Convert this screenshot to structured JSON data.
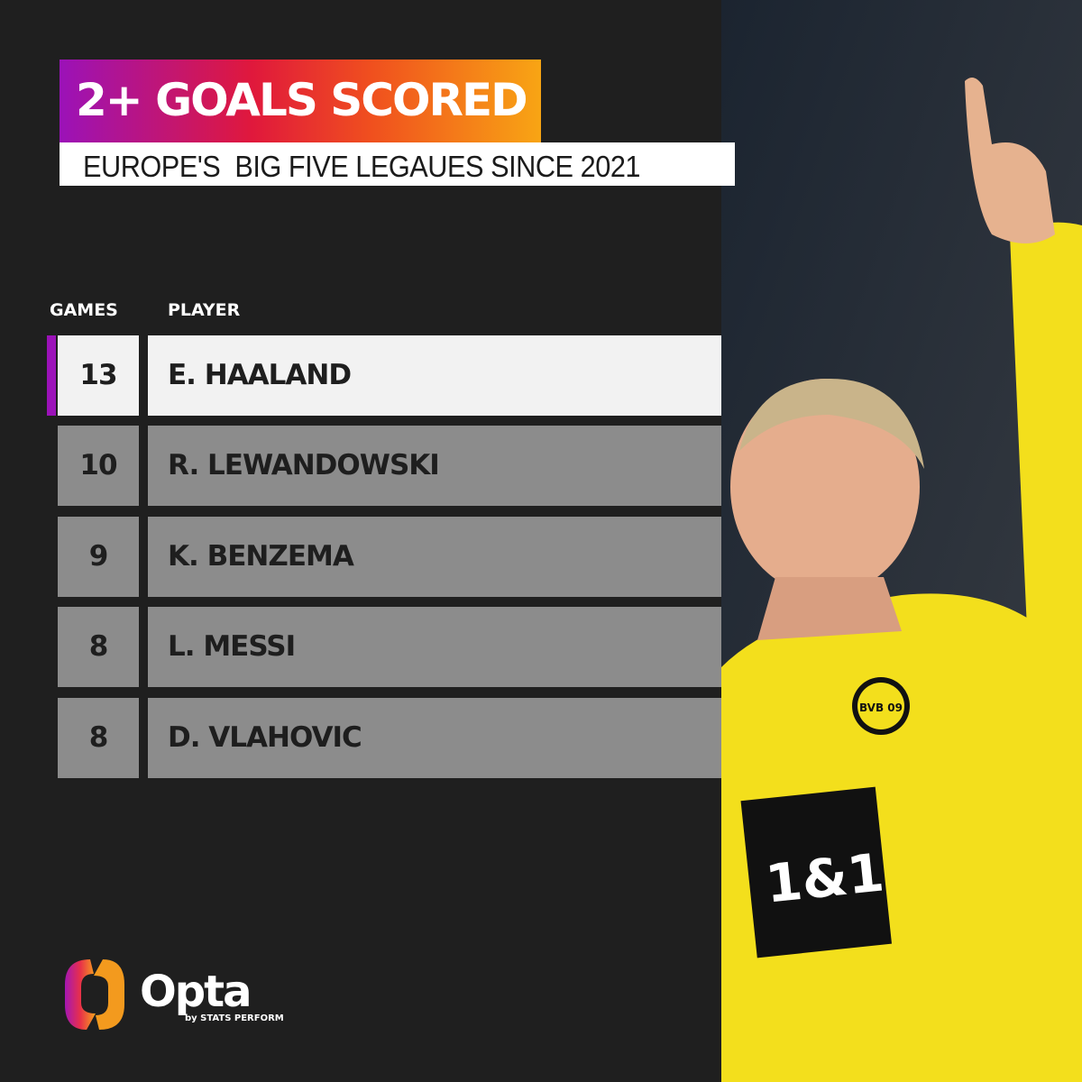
{
  "title": "2+ GOALS SCORED",
  "subtitle": "EUROPE'S  BIG FIVE LEGAUES SINCE 2021",
  "table": {
    "headers": {
      "games": "GAMES",
      "player": "PLAYER"
    },
    "rows": [
      {
        "games": "13",
        "player": "E. HAALAND",
        "highlighted": true
      },
      {
        "games": "10",
        "player": "R. LEWANDOWSKI"
      },
      {
        "games": "9",
        "player": "K. BENZEMA"
      },
      {
        "games": "8",
        "player": "L. MESSI"
      },
      {
        "games": "8",
        "player": "D. VLAHOVIC"
      }
    ]
  },
  "brand": {
    "name": "Opta",
    "tagline": "by STATS PERFORM"
  },
  "photo": {
    "shirt_sponsor": "1&1",
    "badge": "BVB 09"
  },
  "colors": {
    "accent": "#9b12b8",
    "gradient_end": "#f8a514",
    "highlight_row": "#f2f2f2",
    "row": "#8c8c8c",
    "background": "#1f1f1f",
    "jersey": "#f5e21a"
  }
}
